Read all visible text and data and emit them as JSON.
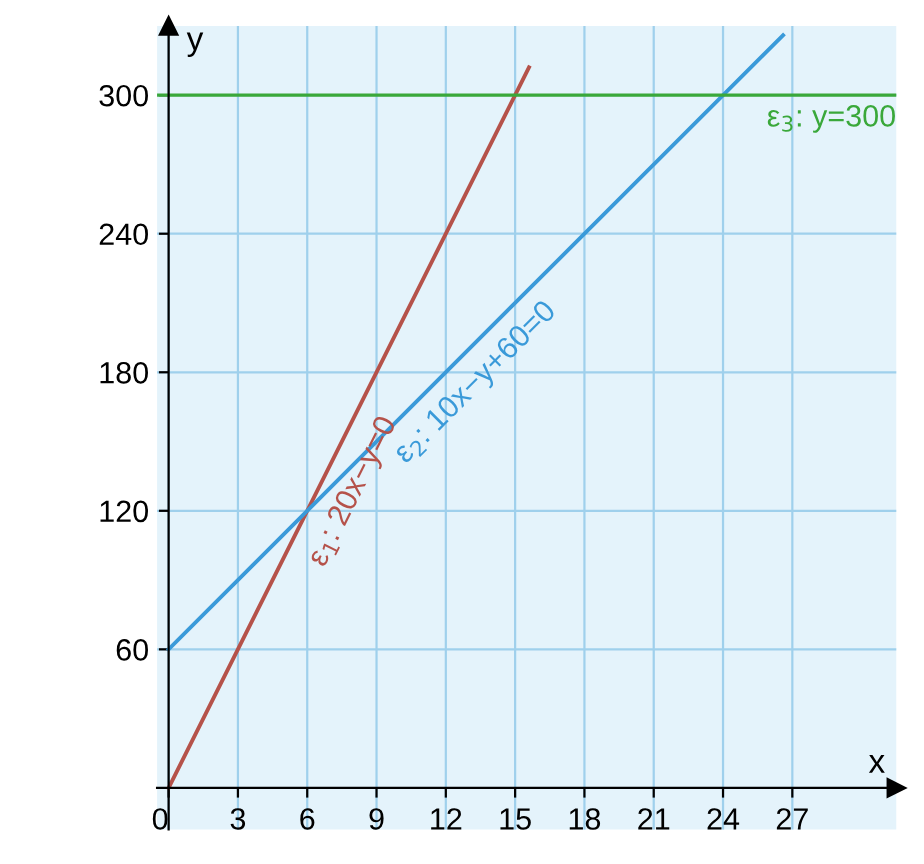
{
  "chart_data": {
    "type": "line",
    "xlabel": "x",
    "ylabel": "y",
    "series": [
      {
        "name": "ε$_{1}$: 20x−y=0",
        "color": "#b5524a",
        "x": [
          0,
          15.6
        ],
        "values": [
          0,
          312
        ]
      },
      {
        "name": "ε$_{2}$: 10x−y+60=0",
        "color": "#3a9ad9",
        "x": [
          0,
          26.6
        ],
        "values": [
          60,
          326
        ]
      }
    ],
    "ref_lines": [
      {
        "axis": "y",
        "value": 300,
        "label": "ε$_{3}$: y=300",
        "color": "#3aa83a"
      }
    ],
    "xlim": [
      -0.5,
      31.5
    ],
    "ylim": [
      -18,
      330
    ],
    "xticks": [
      0,
      3,
      6,
      9,
      12,
      15,
      18,
      21,
      24,
      27
    ],
    "yticks": [
      60,
      120,
      180,
      240,
      300
    ],
    "grid": true,
    "legend": false,
    "marker": "none",
    "line_style": "solid"
  }
}
